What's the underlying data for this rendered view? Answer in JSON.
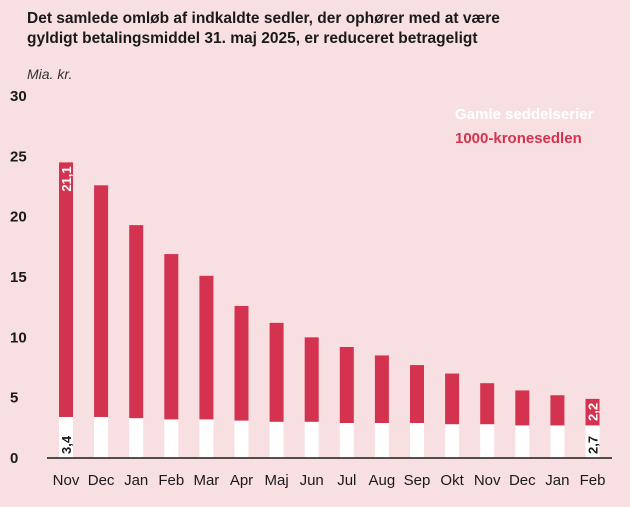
{
  "header": {
    "title_line1": "Det samlede omløb af indkaldte sedler, der ophører med at være",
    "title_line2": "gyldigt betalingsmiddel 31. maj 2025, er reduceret betrageligt",
    "unit": "Mia. kr."
  },
  "colors": {
    "background": "#f8dfe2",
    "bottom_series": "#ffffff",
    "top_series": "#d4334f",
    "axis": "#1a1a1a"
  },
  "chart_data": {
    "type": "bar",
    "stacked": true,
    "categories": [
      "Nov",
      "Dec",
      "Jan",
      "Feb",
      "Mar",
      "Apr",
      "Maj",
      "Jun",
      "Jul",
      "Aug",
      "Sep",
      "Okt",
      "Nov",
      "Dec",
      "Jan",
      "Feb"
    ],
    "series": [
      {
        "name": "Gamle seddelserier",
        "color": "#ffffff",
        "values": [
          3.4,
          3.4,
          3.3,
          3.2,
          3.2,
          3.1,
          3.0,
          3.0,
          2.9,
          2.9,
          2.9,
          2.8,
          2.8,
          2.7,
          2.7,
          2.7
        ]
      },
      {
        "name": "1000-kronesedlen",
        "color": "#d4334f",
        "values": [
          21.1,
          19.2,
          16.0,
          13.7,
          11.9,
          9.5,
          8.2,
          7.0,
          6.3,
          5.6,
          4.8,
          4.2,
          3.4,
          2.9,
          2.5,
          2.2
        ]
      }
    ],
    "data_labels": [
      {
        "category_index": 0,
        "series_index": 0,
        "text": "3,4"
      },
      {
        "category_index": 0,
        "series_index": 1,
        "text": "21,1"
      },
      {
        "category_index": 15,
        "series_index": 0,
        "text": "2,7"
      },
      {
        "category_index": 15,
        "series_index": 1,
        "text": "2,2"
      }
    ],
    "yticks": [
      0,
      5,
      10,
      15,
      20,
      25,
      30
    ],
    "ylim": [
      0,
      30
    ],
    "grid": false,
    "legend_position": "top-right",
    "ylabel": "Mia. kr.",
    "xlabel": ""
  }
}
